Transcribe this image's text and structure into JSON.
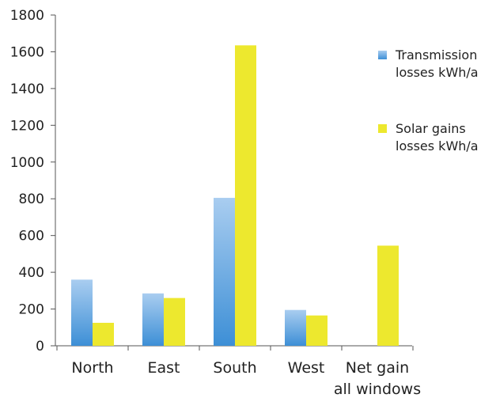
{
  "chart_data": {
    "type": "bar",
    "categories": [
      "North",
      "East",
      "South",
      "West",
      "Net gain all windows"
    ],
    "category_label_lines": [
      [
        "North"
      ],
      [
        "East"
      ],
      [
        "South"
      ],
      [
        "West"
      ],
      [
        "Net gain",
        "all windows"
      ]
    ],
    "series": [
      {
        "name": "Transmission losses kWh/a",
        "legend_lines": [
          "Transmission",
          "losses kWh/a"
        ],
        "values": [
          360,
          285,
          805,
          195,
          null
        ],
        "color_top": "#a9cdf0",
        "color_bottom": "#3d8fd6"
      },
      {
        "name": "Solar gains losses kWh/a",
        "legend_lines": [
          "Solar gains",
          "losses kWh/a"
        ],
        "values": [
          125,
          260,
          1635,
          165,
          545
        ],
        "color": "#ede82e"
      }
    ],
    "y_ticks": [
      0,
      200,
      400,
      600,
      800,
      1000,
      1200,
      1400,
      1600,
      1800
    ],
    "ylim": [
      0,
      1800
    ],
    "title": "",
    "xlabel": "",
    "ylabel": "",
    "grid": false,
    "legend_position": "top-right"
  }
}
